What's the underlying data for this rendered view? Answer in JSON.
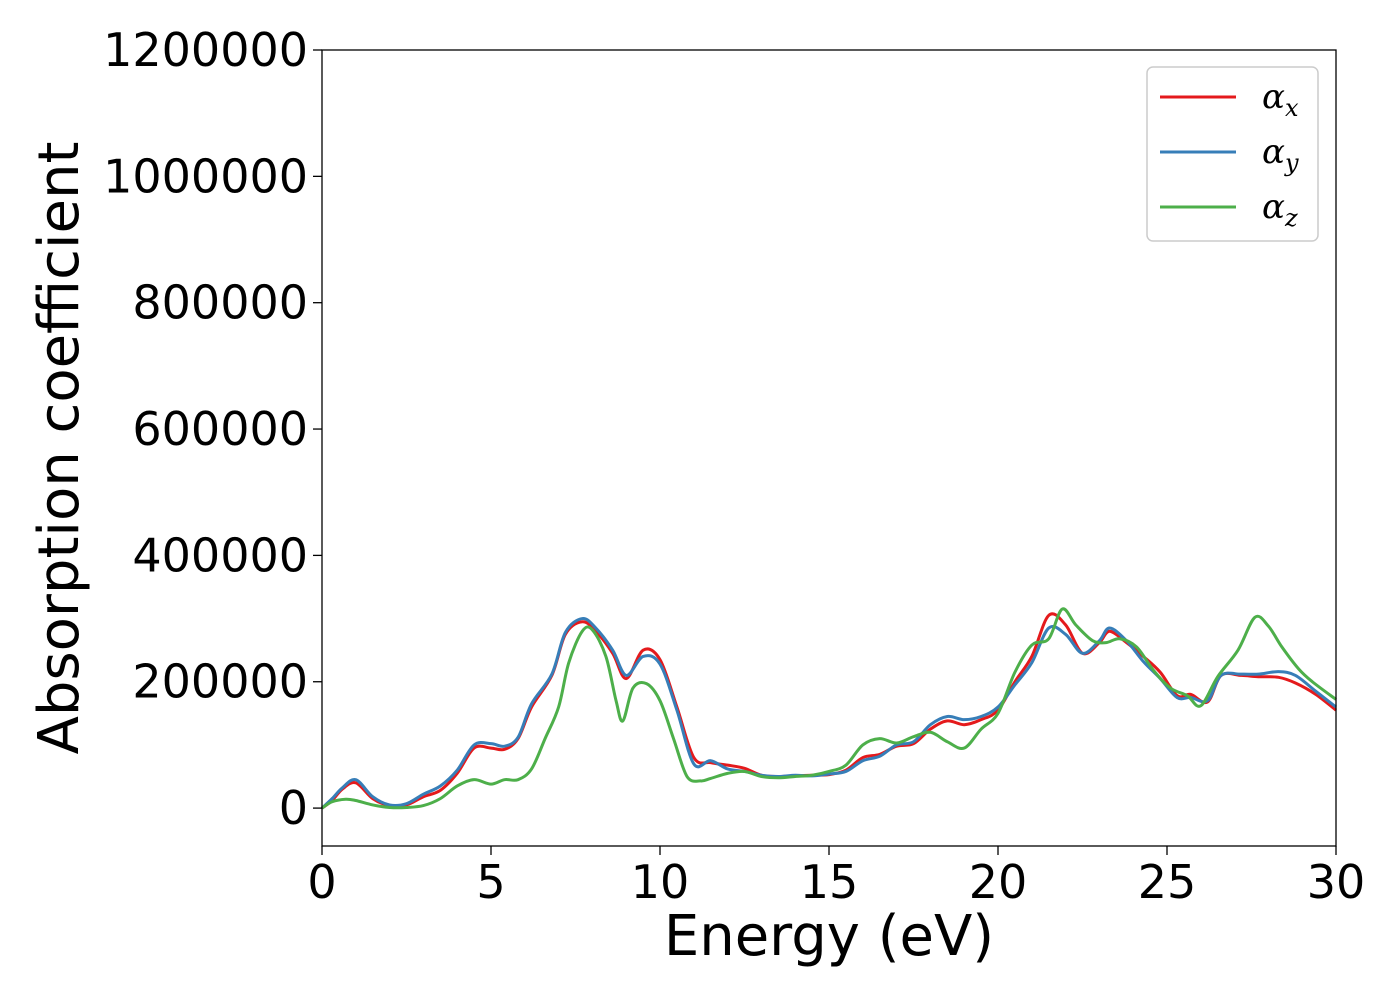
{
  "chart_data": {
    "type": "line",
    "xlabel": "Energy (eV)",
    "ylabel": "Absorption coefficient",
    "xlim": [
      0,
      30
    ],
    "ylim": [
      -60000,
      1200000
    ],
    "xticks": [
      0,
      5,
      10,
      15,
      20,
      25,
      30
    ],
    "yticks": [
      0,
      200000,
      400000,
      600000,
      800000,
      1000000,
      1200000
    ],
    "grid": false,
    "legend_position": "top-right",
    "series": [
      {
        "name": "x",
        "symbol": "α",
        "color": "#e41a1c",
        "points": [
          [
            0,
            0
          ],
          [
            0.3,
            12000
          ],
          [
            0.6,
            30000
          ],
          [
            1,
            40000
          ],
          [
            1.5,
            15000
          ],
          [
            2,
            4000
          ],
          [
            2.5,
            5000
          ],
          [
            3,
            18000
          ],
          [
            3.5,
            28000
          ],
          [
            4,
            55000
          ],
          [
            4.5,
            95000
          ],
          [
            5,
            95000
          ],
          [
            5.4,
            93000
          ],
          [
            5.8,
            110000
          ],
          [
            6.2,
            160000
          ],
          [
            6.8,
            210000
          ],
          [
            7.2,
            275000
          ],
          [
            7.7,
            295000
          ],
          [
            8.1,
            280000
          ],
          [
            8.6,
            245000
          ],
          [
            9,
            205000
          ],
          [
            9.5,
            250000
          ],
          [
            10,
            235000
          ],
          [
            10.5,
            160000
          ],
          [
            11,
            80000
          ],
          [
            11.5,
            72000
          ],
          [
            12,
            68000
          ],
          [
            12.5,
            63000
          ],
          [
            13,
            52000
          ],
          [
            13.5,
            50000
          ],
          [
            14,
            51000
          ],
          [
            14.5,
            52000
          ],
          [
            15,
            53000
          ],
          [
            15.5,
            60000
          ],
          [
            16,
            80000
          ],
          [
            16.5,
            85000
          ],
          [
            17,
            98000
          ],
          [
            17.5,
            102000
          ],
          [
            18,
            125000
          ],
          [
            18.5,
            138000
          ],
          [
            19,
            132000
          ],
          [
            19.5,
            140000
          ],
          [
            20,
            155000
          ],
          [
            20.5,
            200000
          ],
          [
            21,
            240000
          ],
          [
            21.5,
            305000
          ],
          [
            22,
            290000
          ],
          [
            22.5,
            245000
          ],
          [
            23,
            262000
          ],
          [
            23.3,
            280000
          ],
          [
            23.8,
            262000
          ],
          [
            24.3,
            240000
          ],
          [
            24.8,
            215000
          ],
          [
            25.3,
            178000
          ],
          [
            25.7,
            180000
          ],
          [
            26.2,
            168000
          ],
          [
            26.6,
            210000
          ],
          [
            27.2,
            210000
          ],
          [
            27.7,
            208000
          ],
          [
            28.3,
            207000
          ],
          [
            28.8,
            198000
          ],
          [
            29.4,
            180000
          ],
          [
            30,
            155000
          ]
        ]
      },
      {
        "name": "y",
        "symbol": "α",
        "color": "#377eb8",
        "points": [
          [
            0,
            0
          ],
          [
            0.3,
            15000
          ],
          [
            0.6,
            32000
          ],
          [
            1,
            45000
          ],
          [
            1.5,
            18000
          ],
          [
            2,
            5000
          ],
          [
            2.5,
            7000
          ],
          [
            3,
            22000
          ],
          [
            3.5,
            35000
          ],
          [
            4,
            60000
          ],
          [
            4.5,
            100000
          ],
          [
            5,
            102000
          ],
          [
            5.4,
            98000
          ],
          [
            5.8,
            112000
          ],
          [
            6.2,
            165000
          ],
          [
            6.8,
            212000
          ],
          [
            7.2,
            278000
          ],
          [
            7.7,
            300000
          ],
          [
            8.1,
            285000
          ],
          [
            8.6,
            250000
          ],
          [
            9,
            210000
          ],
          [
            9.5,
            240000
          ],
          [
            10,
            228000
          ],
          [
            10.5,
            155000
          ],
          [
            11,
            70000
          ],
          [
            11.5,
            75000
          ],
          [
            12,
            62000
          ],
          [
            12.5,
            58000
          ],
          [
            13,
            52000
          ],
          [
            13.5,
            50000
          ],
          [
            14,
            52000
          ],
          [
            14.5,
            51000
          ],
          [
            15,
            54000
          ],
          [
            15.5,
            58000
          ],
          [
            16,
            75000
          ],
          [
            16.5,
            82000
          ],
          [
            17,
            100000
          ],
          [
            17.5,
            105000
          ],
          [
            18,
            132000
          ],
          [
            18.5,
            145000
          ],
          [
            19,
            140000
          ],
          [
            19.5,
            145000
          ],
          [
            20,
            160000
          ],
          [
            20.5,
            195000
          ],
          [
            21,
            230000
          ],
          [
            21.5,
            285000
          ],
          [
            22,
            275000
          ],
          [
            22.5,
            245000
          ],
          [
            23,
            265000
          ],
          [
            23.3,
            285000
          ],
          [
            23.8,
            265000
          ],
          [
            24.3,
            232000
          ],
          [
            24.8,
            205000
          ],
          [
            25.3,
            175000
          ],
          [
            25.7,
            175000
          ],
          [
            26.2,
            170000
          ],
          [
            26.6,
            210000
          ],
          [
            27.2,
            212000
          ],
          [
            27.7,
            212000
          ],
          [
            28.3,
            216000
          ],
          [
            28.8,
            210000
          ],
          [
            29.4,
            185000
          ],
          [
            30,
            160000
          ]
        ]
      },
      {
        "name": "z",
        "symbol": "α",
        "color": "#4daf4a",
        "points": [
          [
            0,
            0
          ],
          [
            0.3,
            10000
          ],
          [
            0.7,
            14000
          ],
          [
            1,
            12000
          ],
          [
            1.5,
            5000
          ],
          [
            2,
            1000
          ],
          [
            2.5,
            1000
          ],
          [
            3,
            4000
          ],
          [
            3.5,
            15000
          ],
          [
            4,
            35000
          ],
          [
            4.5,
            45000
          ],
          [
            5,
            38000
          ],
          [
            5.4,
            45000
          ],
          [
            5.8,
            45000
          ],
          [
            6.2,
            62000
          ],
          [
            6.6,
            110000
          ],
          [
            7,
            160000
          ],
          [
            7.3,
            230000
          ],
          [
            7.7,
            280000
          ],
          [
            8,
            282000
          ],
          [
            8.4,
            240000
          ],
          [
            8.7,
            170000
          ],
          [
            8.9,
            138000
          ],
          [
            9.2,
            190000
          ],
          [
            9.6,
            197000
          ],
          [
            10,
            170000
          ],
          [
            10.4,
            110000
          ],
          [
            10.8,
            50000
          ],
          [
            11.2,
            43000
          ],
          [
            11.5,
            47000
          ],
          [
            12,
            55000
          ],
          [
            12.5,
            58000
          ],
          [
            13,
            50000
          ],
          [
            13.5,
            48000
          ],
          [
            14,
            50000
          ],
          [
            14.5,
            52000
          ],
          [
            15,
            58000
          ],
          [
            15.5,
            68000
          ],
          [
            16,
            100000
          ],
          [
            16.5,
            110000
          ],
          [
            17,
            103000
          ],
          [
            17.5,
            113000
          ],
          [
            18,
            120000
          ],
          [
            18.5,
            105000
          ],
          [
            19,
            95000
          ],
          [
            19.5,
            125000
          ],
          [
            20,
            150000
          ],
          [
            20.5,
            215000
          ],
          [
            21,
            258000
          ],
          [
            21.5,
            268000
          ],
          [
            21.9,
            315000
          ],
          [
            22.3,
            290000
          ],
          [
            22.8,
            265000
          ],
          [
            23.2,
            262000
          ],
          [
            23.6,
            268000
          ],
          [
            24.1,
            255000
          ],
          [
            24.6,
            218000
          ],
          [
            25.1,
            190000
          ],
          [
            25.6,
            178000
          ],
          [
            26,
            162000
          ],
          [
            26.5,
            208000
          ],
          [
            27.1,
            250000
          ],
          [
            27.6,
            302000
          ],
          [
            28,
            288000
          ],
          [
            28.4,
            255000
          ],
          [
            28.9,
            220000
          ],
          [
            29.3,
            200000
          ],
          [
            30,
            172000
          ]
        ]
      }
    ]
  }
}
